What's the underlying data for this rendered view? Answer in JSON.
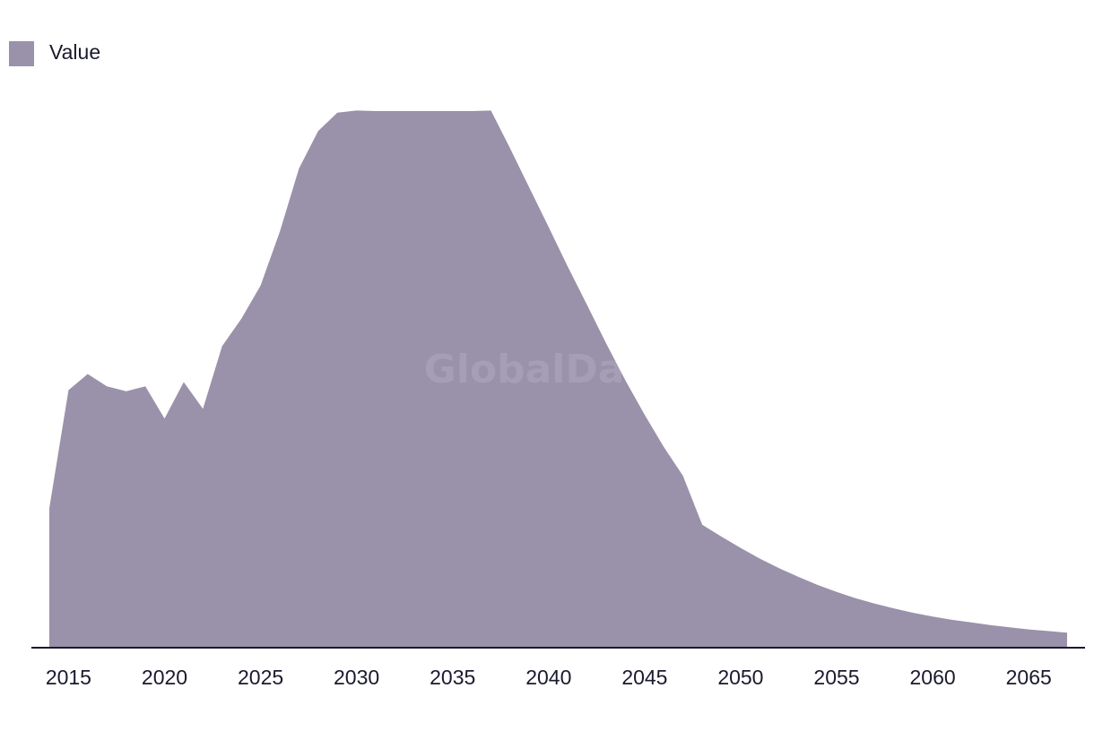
{
  "legend": {
    "label": "Value",
    "swatch_color": "#9a91aa"
  },
  "watermark": "GlobalData",
  "colors": {
    "area_fill": "#9a91aa",
    "axis_line": "#1a1a2e",
    "text": "#1a1a2e"
  },
  "chart_data": {
    "type": "area",
    "title": "",
    "xlabel": "",
    "ylabel": "",
    "xlim": [
      2014,
      2067
    ],
    "ylim": [
      0,
      100
    ],
    "grid": false,
    "legend_position": "top-left",
    "x_ticks": [
      "2015",
      "2020",
      "2025",
      "2030",
      "2035",
      "2040",
      "2045",
      "2050",
      "2055",
      "2060",
      "2065"
    ],
    "x": [
      2014,
      2015,
      2016,
      2017,
      2018,
      2019,
      2020,
      2021,
      2022,
      2023,
      2024,
      2025,
      2026,
      2027,
      2028,
      2029,
      2030,
      2031,
      2032,
      2033,
      2034,
      2035,
      2036,
      2037,
      2038,
      2039,
      2040,
      2041,
      2042,
      2043,
      2044,
      2045,
      2046,
      2047,
      2048,
      2049,
      2050,
      2051,
      2052,
      2053,
      2054,
      2055,
      2056,
      2057,
      2058,
      2059,
      2060,
      2061,
      2062,
      2063,
      2064,
      2065,
      2066,
      2067
    ],
    "series": [
      {
        "name": "Value",
        "values": [
          26,
          48,
          51,
          48.7,
          47.8,
          48.7,
          42.7,
          49.5,
          44.5,
          56.2,
          61.3,
          67.5,
          77.5,
          89.3,
          96.3,
          99.7,
          100.1,
          100,
          100,
          100,
          100,
          100,
          100,
          100.1,
          93,
          85.7,
          78.4,
          71,
          63.9,
          56.7,
          49.8,
          43.4,
          37.4,
          32,
          22.9,
          20.7,
          18.6,
          16.6,
          14.8,
          13.2,
          11.7,
          10.4,
          9.2,
          8.2,
          7.3,
          6.5,
          5.8,
          5.2,
          4.7,
          4.2,
          3.8,
          3.4,
          3.1,
          2.8
        ]
      }
    ]
  }
}
